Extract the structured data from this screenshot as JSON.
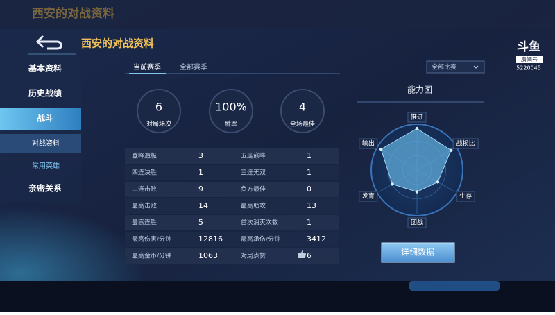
{
  "header": {
    "background_title": "西安的对战资料",
    "title": "西安的对战资料"
  },
  "sidebar": {
    "items": [
      "基本资料",
      "历史战绩",
      "战斗",
      "对战资料",
      "常用英雄",
      "亲密关系"
    ]
  },
  "tabs": [
    "当前赛季",
    "全部赛季"
  ],
  "filter": "全部比赛",
  "summary": [
    {
      "value": 6,
      "label": "对局场次"
    },
    {
      "value": "100%",
      "label": "胜率"
    },
    {
      "value": 4,
      "label": "全场最佳"
    }
  ],
  "stats": {
    "rows": [
      [
        {
          "label": "登峰造极",
          "value": 3
        },
        {
          "label": "五连巅峰",
          "value": 1
        }
      ],
      [
        {
          "label": "四连决胜",
          "value": 1
        },
        {
          "label": "三连无双",
          "value": 1
        }
      ],
      [
        {
          "label": "二连击败",
          "value": 9
        },
        {
          "label": "负方最佳",
          "value": 0
        }
      ],
      [
        {
          "label": "最高击败",
          "value": 14
        },
        {
          "label": "最高助攻",
          "value": 13
        }
      ],
      [
        {
          "label": "最高连胜",
          "value": 5
        },
        {
          "label": "首次消灭次数",
          "value": 1
        }
      ],
      [
        {
          "label": "最高伤害/分钟",
          "value": 12816
        },
        {
          "label": "最高承伤/分钟",
          "value": 3412
        }
      ],
      [
        {
          "label": "最高金币/分钟",
          "value": 1063
        },
        {
          "label": "对局点赞",
          "value": 6
        }
      ]
    ]
  },
  "radar": {
    "title": "能力图",
    "range": [
      0,
      100
    ],
    "axes": [
      {
        "label": "推进",
        "value": 95
      },
      {
        "label": "战损比",
        "value": 90
      },
      {
        "label": "生存",
        "value": 55
      },
      {
        "label": "团战",
        "value": 50
      },
      {
        "label": "发育",
        "value": 65
      },
      {
        "label": "输出",
        "value": 95
      }
    ]
  },
  "button": "详细数据",
  "watermark": {
    "logo": "斗鱼",
    "room_label": "房间号",
    "room_id": "5220045"
  }
}
